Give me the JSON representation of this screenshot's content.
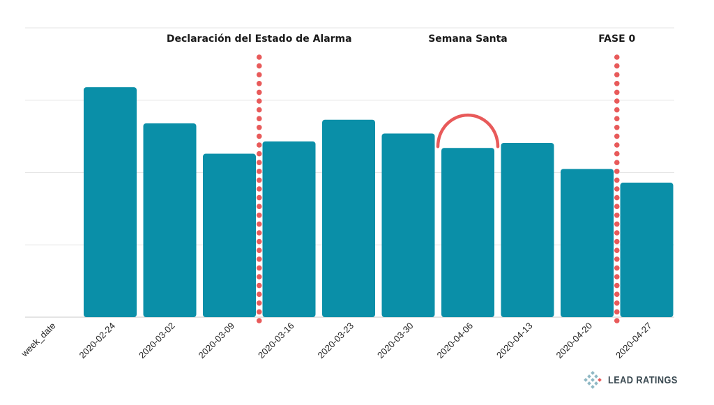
{
  "chart_data": {
    "type": "bar",
    "x_axis_label": "week_date",
    "categories": [
      "2020-02-24",
      "2020-03-02",
      "2020-03-09",
      "2020-03-16",
      "2020-03-23",
      "2020-03-30",
      "2020-04-06",
      "2020-04-13",
      "2020-04-20",
      "2020-04-27"
    ],
    "values": [
      3.18,
      2.68,
      2.26,
      2.43,
      2.73,
      2.54,
      2.34,
      2.41,
      2.05,
      1.86
    ],
    "ylim": [
      0,
      4
    ],
    "y_tick_labels_visible": false,
    "grid": true,
    "bar_color": "#0a8fa8",
    "annotations": [
      {
        "text": "Declaración del Estado de Alarma",
        "type": "vertical-dotted-line",
        "after_category": "2020-03-09"
      },
      {
        "text": "Semana Santa",
        "type": "arc",
        "over_category": "2020-04-06"
      },
      {
        "text": "FASE 0",
        "type": "vertical-dotted-line",
        "after_category": "2020-04-20"
      }
    ],
    "annotation_color": "#e85a5a"
  },
  "brand": {
    "name": "LEAD RATINGS",
    "icon": "diamond-grid-icon"
  }
}
